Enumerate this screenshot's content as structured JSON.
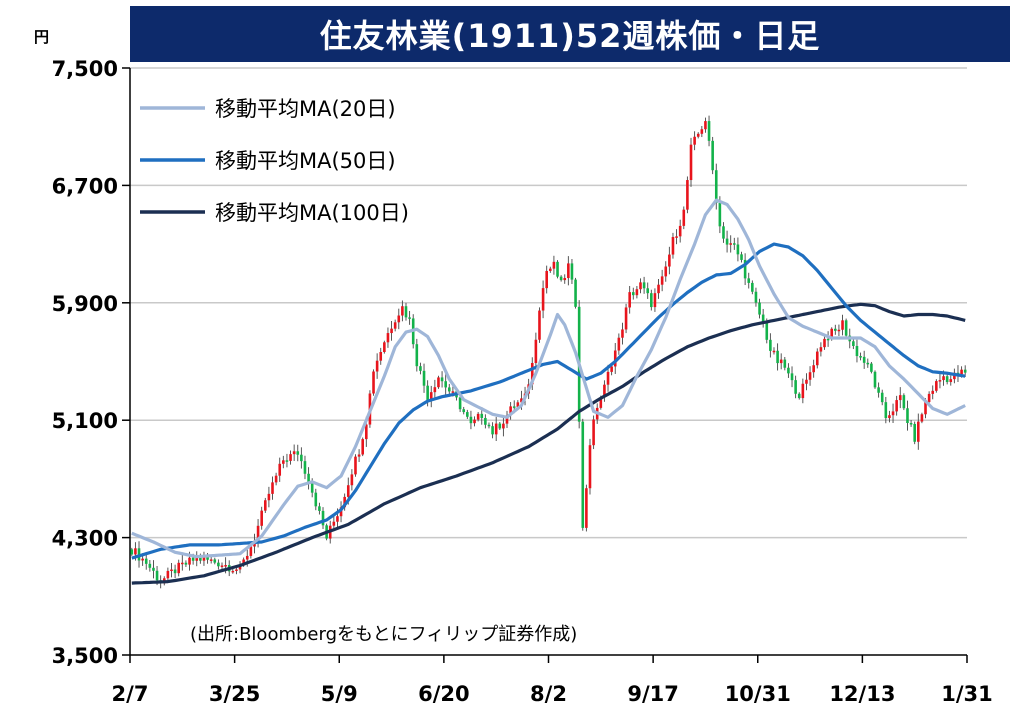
{
  "title": "住友林業(1911)52週株価・日足",
  "unit": "円",
  "source": "(出所:Bloombergをもとにフィリップ証券作成)",
  "colors": {
    "title_bg": "#0d2a6b",
    "up": "#e8141c",
    "down": "#13b24a",
    "ma20": "#9fb6d8",
    "ma50": "#1f6fc0",
    "ma100": "#1b2f52",
    "grid": "#c9c9c9"
  },
  "chart_data": {
    "type": "candlestick",
    "title": "住友林業(1911)52週株価・日足",
    "ylim": [
      3500,
      7500
    ],
    "yticks": [
      3500,
      4300,
      5100,
      5900,
      6700,
      7500
    ],
    "ytick_labels": [
      "3,500",
      "4,300",
      "5,100",
      "5,900",
      "6,700",
      "7,500"
    ],
    "xticks": [
      "2/7",
      "3/25",
      "5/9",
      "6/20",
      "8/2",
      "9/17",
      "10/31",
      "12/13",
      "1/31"
    ],
    "legend": [
      {
        "key": "ma20",
        "label": "移動平均MA(20日)"
      },
      {
        "key": "ma50",
        "label": "移動平均MA(50日)"
      },
      {
        "key": "ma100",
        "label": "移動平均MA(100日)"
      }
    ],
    "price_anchors": [
      [
        0,
        4220
      ],
      [
        4,
        4130
      ],
      [
        8,
        4000
      ],
      [
        12,
        4080
      ],
      [
        18,
        4160
      ],
      [
        24,
        4130
      ],
      [
        30,
        4080
      ],
      [
        34,
        4300
      ],
      [
        38,
        4600
      ],
      [
        42,
        4830
      ],
      [
        46,
        4880
      ],
      [
        49,
        4700
      ],
      [
        52,
        4460
      ],
      [
        54,
        4300
      ],
      [
        58,
        4520
      ],
      [
        61,
        4760
      ],
      [
        63,
        4900
      ],
      [
        65,
        5100
      ],
      [
        67,
        5450
      ],
      [
        70,
        5640
      ],
      [
        73,
        5800
      ],
      [
        75,
        5870
      ],
      [
        77,
        5780
      ],
      [
        79,
        5500
      ],
      [
        82,
        5260
      ],
      [
        85,
        5400
      ],
      [
        88,
        5300
      ],
      [
        91,
        5200
      ],
      [
        94,
        5060
      ],
      [
        97,
        5140
      ],
      [
        100,
        5020
      ],
      [
        103,
        5100
      ],
      [
        106,
        5200
      ],
      [
        109,
        5250
      ],
      [
        111,
        5480
      ],
      [
        113,
        5880
      ],
      [
        115,
        6120
      ],
      [
        117,
        6150
      ],
      [
        119,
        6020
      ],
      [
        121,
        6150
      ],
      [
        123,
        5900
      ],
      [
        125,
        4350
      ],
      [
        127,
        4950
      ],
      [
        129,
        5200
      ],
      [
        131,
        5320
      ],
      [
        133,
        5500
      ],
      [
        135,
        5640
      ],
      [
        138,
        5950
      ],
      [
        141,
        6020
      ],
      [
        144,
        5900
      ],
      [
        147,
        6050
      ],
      [
        150,
        6320
      ],
      [
        153,
        6520
      ],
      [
        155,
        6950
      ],
      [
        157,
        7050
      ],
      [
        159,
        7150
      ],
      [
        161,
        6800
      ],
      [
        163,
        6420
      ],
      [
        165,
        6300
      ],
      [
        167,
        6280
      ],
      [
        169,
        6180
      ],
      [
        171,
        6020
      ],
      [
        173,
        5880
      ],
      [
        175,
        5760
      ],
      [
        177,
        5580
      ],
      [
        179,
        5500
      ],
      [
        181,
        5460
      ],
      [
        183,
        5350
      ],
      [
        185,
        5280
      ],
      [
        187,
        5360
      ],
      [
        189,
        5500
      ],
      [
        191,
        5620
      ],
      [
        193,
        5680
      ],
      [
        195,
        5700
      ],
      [
        197,
        5760
      ],
      [
        199,
        5640
      ],
      [
        201,
        5560
      ],
      [
        203,
        5500
      ],
      [
        205,
        5420
      ],
      [
        207,
        5260
      ],
      [
        209,
        5120
      ],
      [
        211,
        5180
      ],
      [
        213,
        5250
      ],
      [
        215,
        5100
      ],
      [
        217,
        4980
      ],
      [
        219,
        5150
      ],
      [
        221,
        5280
      ],
      [
        223,
        5350
      ],
      [
        225,
        5400
      ],
      [
        227,
        5380
      ],
      [
        229,
        5420
      ],
      [
        231,
        5420
      ]
    ],
    "ma20": [
      [
        0,
        4330
      ],
      [
        6,
        4270
      ],
      [
        12,
        4200
      ],
      [
        18,
        4170
      ],
      [
        24,
        4180
      ],
      [
        30,
        4190
      ],
      [
        36,
        4310
      ],
      [
        42,
        4520
      ],
      [
        46,
        4650
      ],
      [
        50,
        4680
      ],
      [
        54,
        4640
      ],
      [
        58,
        4720
      ],
      [
        62,
        4920
      ],
      [
        66,
        5160
      ],
      [
        70,
        5400
      ],
      [
        73,
        5600
      ],
      [
        76,
        5700
      ],
      [
        79,
        5720
      ],
      [
        82,
        5670
      ],
      [
        85,
        5540
      ],
      [
        88,
        5380
      ],
      [
        92,
        5240
      ],
      [
        96,
        5190
      ],
      [
        100,
        5140
      ],
      [
        104,
        5120
      ],
      [
        108,
        5200
      ],
      [
        112,
        5420
      ],
      [
        116,
        5680
      ],
      [
        118,
        5820
      ],
      [
        120,
        5750
      ],
      [
        123,
        5560
      ],
      [
        126,
        5320
      ],
      [
        128,
        5160
      ],
      [
        132,
        5120
      ],
      [
        136,
        5200
      ],
      [
        140,
        5400
      ],
      [
        144,
        5580
      ],
      [
        148,
        5800
      ],
      [
        152,
        6060
      ],
      [
        156,
        6300
      ],
      [
        159,
        6500
      ],
      [
        162,
        6600
      ],
      [
        165,
        6570
      ],
      [
        168,
        6470
      ],
      [
        171,
        6330
      ],
      [
        174,
        6150
      ],
      [
        178,
        5960
      ],
      [
        182,
        5800
      ],
      [
        186,
        5740
      ],
      [
        190,
        5700
      ],
      [
        194,
        5660
      ],
      [
        198,
        5660
      ],
      [
        202,
        5660
      ],
      [
        206,
        5600
      ],
      [
        210,
        5470
      ],
      [
        214,
        5380
      ],
      [
        218,
        5280
      ],
      [
        222,
        5180
      ],
      [
        226,
        5140
      ],
      [
        231,
        5200
      ]
    ],
    "ma50": [
      [
        0,
        4160
      ],
      [
        8,
        4220
      ],
      [
        16,
        4250
      ],
      [
        24,
        4250
      ],
      [
        30,
        4260
      ],
      [
        36,
        4270
      ],
      [
        42,
        4310
      ],
      [
        48,
        4370
      ],
      [
        54,
        4420
      ],
      [
        58,
        4490
      ],
      [
        62,
        4620
      ],
      [
        66,
        4780
      ],
      [
        70,
        4940
      ],
      [
        74,
        5080
      ],
      [
        78,
        5170
      ],
      [
        82,
        5230
      ],
      [
        86,
        5260
      ],
      [
        90,
        5280
      ],
      [
        94,
        5300
      ],
      [
        98,
        5330
      ],
      [
        102,
        5360
      ],
      [
        106,
        5400
      ],
      [
        110,
        5440
      ],
      [
        114,
        5480
      ],
      [
        118,
        5500
      ],
      [
        122,
        5440
      ],
      [
        126,
        5380
      ],
      [
        130,
        5420
      ],
      [
        134,
        5500
      ],
      [
        138,
        5600
      ],
      [
        142,
        5700
      ],
      [
        146,
        5800
      ],
      [
        150,
        5890
      ],
      [
        154,
        5970
      ],
      [
        158,
        6040
      ],
      [
        162,
        6090
      ],
      [
        166,
        6100
      ],
      [
        170,
        6160
      ],
      [
        174,
        6250
      ],
      [
        178,
        6300
      ],
      [
        182,
        6280
      ],
      [
        186,
        6220
      ],
      [
        190,
        6120
      ],
      [
        194,
        6000
      ],
      [
        198,
        5880
      ],
      [
        202,
        5780
      ],
      [
        206,
        5700
      ],
      [
        210,
        5620
      ],
      [
        214,
        5540
      ],
      [
        218,
        5470
      ],
      [
        222,
        5430
      ],
      [
        226,
        5420
      ],
      [
        231,
        5400
      ]
    ],
    "ma100": [
      [
        0,
        3990
      ],
      [
        10,
        4000
      ],
      [
        20,
        4040
      ],
      [
        30,
        4110
      ],
      [
        40,
        4200
      ],
      [
        50,
        4300
      ],
      [
        60,
        4390
      ],
      [
        70,
        4530
      ],
      [
        80,
        4640
      ],
      [
        90,
        4720
      ],
      [
        100,
        4810
      ],
      [
        110,
        4920
      ],
      [
        118,
        5040
      ],
      [
        124,
        5160
      ],
      [
        130,
        5250
      ],
      [
        136,
        5330
      ],
      [
        142,
        5430
      ],
      [
        148,
        5520
      ],
      [
        154,
        5600
      ],
      [
        160,
        5660
      ],
      [
        166,
        5710
      ],
      [
        172,
        5750
      ],
      [
        178,
        5780
      ],
      [
        184,
        5810
      ],
      [
        190,
        5840
      ],
      [
        196,
        5870
      ],
      [
        202,
        5890
      ],
      [
        206,
        5880
      ],
      [
        210,
        5840
      ],
      [
        214,
        5810
      ],
      [
        218,
        5820
      ],
      [
        222,
        5820
      ],
      [
        226,
        5810
      ],
      [
        231,
        5780
      ]
    ]
  }
}
